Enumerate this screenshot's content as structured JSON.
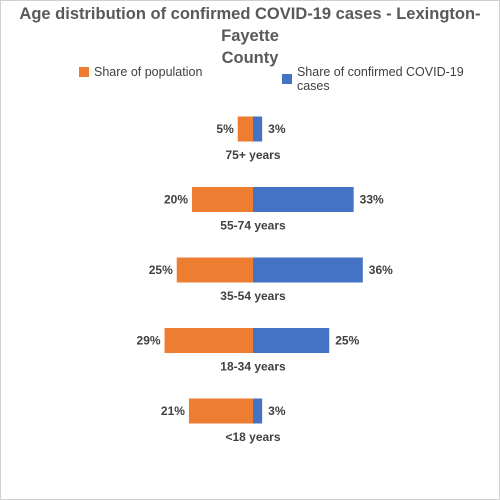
{
  "colors": {
    "population": "#ED7D31",
    "cases": "#4472C4"
  },
  "chart_data": {
    "type": "bar",
    "orientation": "horizontal-diverging",
    "title": "Age distribution of confirmed COVID-19 cases -  Lexington-Fayette County",
    "title_lines": [
      "Age distribution of confirmed COVID-19 cases -  Lexington-Fayette",
      "County"
    ],
    "categories": [
      "75+ years",
      "55-74 years",
      "35-54 years",
      "18-34 years",
      "<18 years"
    ],
    "series": [
      {
        "name": "Share of population",
        "values": [
          5,
          20,
          25,
          29,
          21
        ],
        "labels": [
          "5%",
          "20%",
          "25%",
          "29%",
          "21%"
        ]
      },
      {
        "name": "Share of confirmed COVID-19 cases",
        "values": [
          3,
          33,
          36,
          25,
          3
        ],
        "labels": [
          "3%",
          "33%",
          "36%",
          "25%",
          "3%"
        ]
      }
    ],
    "legend_position": "top",
    "grid": false,
    "xlabel": "",
    "ylabel": ""
  }
}
